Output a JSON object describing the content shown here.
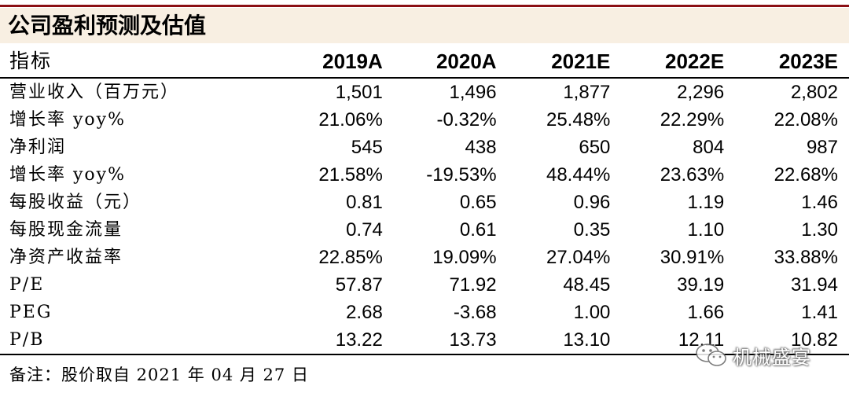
{
  "title": "公司盈利预测及估值",
  "table": {
    "header": {
      "label": "指标",
      "columns": [
        "2019A",
        "2020A",
        "2021E",
        "2022E",
        "2023E"
      ]
    },
    "rows": [
      {
        "label": "营业收入（百万元）",
        "values": [
          "1,501",
          "1,496",
          "1,877",
          "2,296",
          "2,802"
        ]
      },
      {
        "label": "增长率 yoy%",
        "values": [
          "21.06%",
          "-0.32%",
          "25.48%",
          "22.29%",
          "22.08%"
        ]
      },
      {
        "label": "净利润",
        "values": [
          "545",
          "438",
          "650",
          "804",
          "987"
        ]
      },
      {
        "label": "增长率 yoy%",
        "values": [
          "21.58%",
          "-19.53%",
          "48.44%",
          "23.63%",
          "22.68%"
        ]
      },
      {
        "label": "每股收益（元）",
        "values": [
          "0.81",
          "0.65",
          "0.96",
          "1.19",
          "1.46"
        ]
      },
      {
        "label": "每股现金流量",
        "values": [
          "0.74",
          "0.61",
          "0.35",
          "1.10",
          "1.30"
        ]
      },
      {
        "label": "净资产收益率",
        "values": [
          "22.85%",
          "19.09%",
          "27.04%",
          "30.91%",
          "33.88%"
        ]
      },
      {
        "label": "P/E",
        "values": [
          "57.87",
          "71.92",
          "48.45",
          "39.19",
          "31.94"
        ]
      },
      {
        "label": "PEG",
        "values": [
          "2.68",
          "-3.68",
          "1.00",
          "1.66",
          "1.41"
        ]
      },
      {
        "label": "P/B",
        "values": [
          "13.22",
          "13.73",
          "13.10",
          "12.11",
          "10.82"
        ]
      }
    ]
  },
  "note": "备注：股价取自 2021 年 04 月 27 日",
  "watermark": {
    "text": "机械盛宴",
    "icon": "wechat-icon"
  },
  "colors": {
    "title_rule": "#8b0f14",
    "title_background": "#f8efe2",
    "text": "#000000"
  }
}
